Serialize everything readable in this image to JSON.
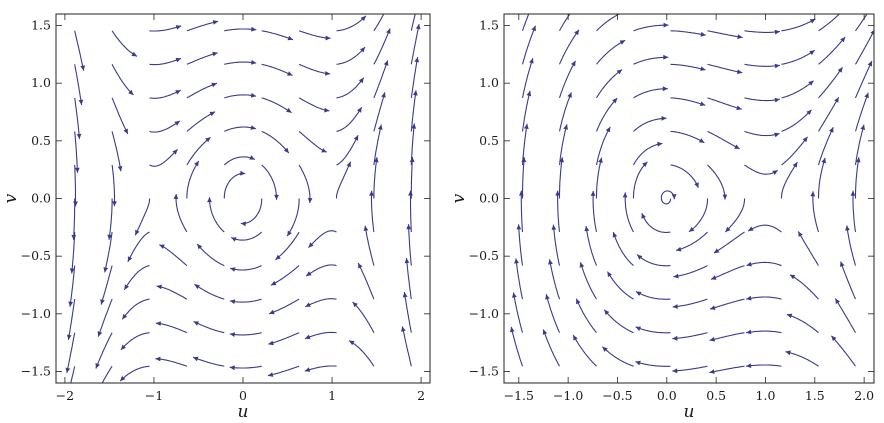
{
  "chart_data": [
    {
      "type": "stream",
      "title": "",
      "xlabel": "u",
      "ylabel": "v",
      "xlim": [
        -2.1,
        2.1
      ],
      "ylim": [
        -1.6,
        1.6
      ],
      "xticks": [
        -2,
        -1,
        0,
        1,
        2
      ],
      "xtick_labels": [
        "−2",
        "−1",
        "0",
        "1",
        "2"
      ],
      "yticks": [
        -1.5,
        -1.0,
        -0.5,
        0.0,
        0.5,
        1.0,
        1.5
      ],
      "ytick_labels": [
        "−1.5",
        "−1.0",
        "−0.5",
        "0.0",
        "0.5",
        "1.0",
        "1.5"
      ],
      "field": "u_dot = v, v_dot = -u + u^3",
      "fixed_points": [
        [
          -1,
          0
        ],
        [
          0,
          0
        ],
        [
          1,
          0
        ]
      ],
      "color": "#3a3a8c"
    },
    {
      "type": "stream",
      "title": "",
      "xlabel": "u",
      "ylabel": "v",
      "xlim": [
        -1.65,
        2.1
      ],
      "ylim": [
        -1.6,
        1.6
      ],
      "xticks": [
        -1.5,
        -1.0,
        -0.5,
        0.0,
        0.5,
        1.0,
        1.5,
        2.0
      ],
      "xtick_labels": [
        "−1.5",
        "−1.0",
        "−0.5",
        "0.0",
        "0.5",
        "1.0",
        "1.5",
        "2.0"
      ],
      "yticks": [
        -1.5,
        -1.0,
        -0.5,
        0.0,
        0.5,
        1.0,
        1.5
      ],
      "ytick_labels": [
        "−1.5",
        "−1.0",
        "−0.5",
        "0.0",
        "0.5",
        "1.0",
        "1.5"
      ],
      "field": "u_dot = v, v_dot = -u + u^2",
      "fixed_points": [
        [
          0,
          0
        ],
        [
          1,
          0
        ]
      ],
      "color": "#3a3a8c"
    }
  ]
}
